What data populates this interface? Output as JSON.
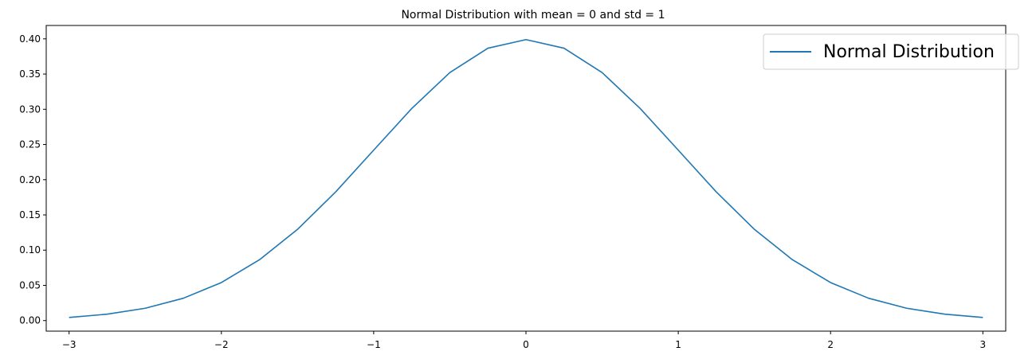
{
  "chart_data": {
    "type": "line",
    "title": "Normal Distribution with mean = 0 and std = 1",
    "xlabel": "",
    "ylabel": "",
    "xlim": [
      -3.15,
      3.15
    ],
    "ylim": [
      -0.015,
      0.419
    ],
    "x_ticks": [
      -3,
      -2,
      -1,
      0,
      1,
      2,
      3
    ],
    "x_tick_labels": [
      "−3",
      "−2",
      "−1",
      "0",
      "1",
      "2",
      "3"
    ],
    "y_ticks": [
      0.0,
      0.05,
      0.1,
      0.15,
      0.2,
      0.25,
      0.3,
      0.35,
      0.4
    ],
    "y_tick_labels": [
      "0.00",
      "0.05",
      "0.10",
      "0.15",
      "0.20",
      "0.25",
      "0.30",
      "0.35",
      "0.40"
    ],
    "grid": false,
    "legend_position": "top-right",
    "series": [
      {
        "name": "Normal Distribution",
        "color": "#1f77b4",
        "x": [
          -3.0,
          -2.75,
          -2.5,
          -2.25,
          -2.0,
          -1.75,
          -1.5,
          -1.25,
          -1.0,
          -0.75,
          -0.5,
          -0.25,
          0.0,
          0.25,
          0.5,
          0.75,
          1.0,
          1.25,
          1.5,
          1.75,
          2.0,
          2.25,
          2.5,
          2.75,
          3.0
        ],
        "y": [
          0.0044,
          0.0091,
          0.0175,
          0.0317,
          0.054,
          0.0863,
          0.1295,
          0.1826,
          0.242,
          0.3011,
          0.3521,
          0.3867,
          0.3989,
          0.3867,
          0.3521,
          0.3011,
          0.242,
          0.1826,
          0.1295,
          0.0863,
          0.054,
          0.0317,
          0.0175,
          0.0091,
          0.0044
        ]
      }
    ]
  }
}
